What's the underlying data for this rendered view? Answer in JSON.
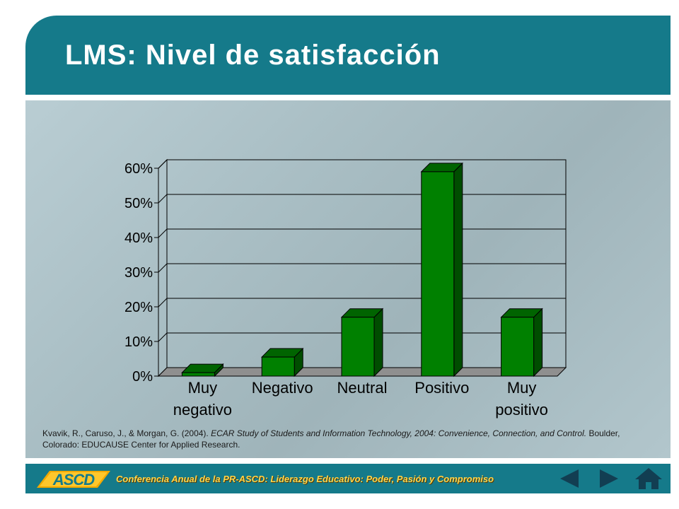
{
  "header": {
    "title": "LMS: Nivel de satisfacción"
  },
  "chart_data": {
    "type": "bar",
    "categories": [
      [
        "Muy",
        "negativo"
      ],
      [
        "Negativo"
      ],
      [
        "Neutral"
      ],
      [
        "Positivo"
      ],
      [
        "Muy",
        "positivo"
      ]
    ],
    "values": [
      1,
      5.5,
      17,
      59,
      17
    ],
    "ylim": [
      0,
      60
    ],
    "yticks": [
      "0%",
      "10%",
      "20%",
      "30%",
      "40%",
      "50%",
      "60%"
    ],
    "grid": true,
    "bar_color": "#008000"
  },
  "citation": {
    "authors": "Kvavik, R., Caruso, J., & Morgan, G. (2004).",
    "title": "ECAR Study of Students and Information Technology, 2004: Convenience, Connection, and Control.",
    "publisher": "Boulder, Colorado: EDUCAUSE Center for Applied Research."
  },
  "footer": {
    "logo_text": "ASCD",
    "conference": "Conferencia Anual de la PR-ASCD: Liderazgo Educativo: Poder, Pasión y Compromiso"
  },
  "nav": {
    "icons": [
      "arrow-left-icon",
      "arrow-right-icon",
      "home-icon"
    ]
  },
  "colors": {
    "teal": "#157a8a",
    "gold": "#ffd54a",
    "bar": "#008000"
  }
}
